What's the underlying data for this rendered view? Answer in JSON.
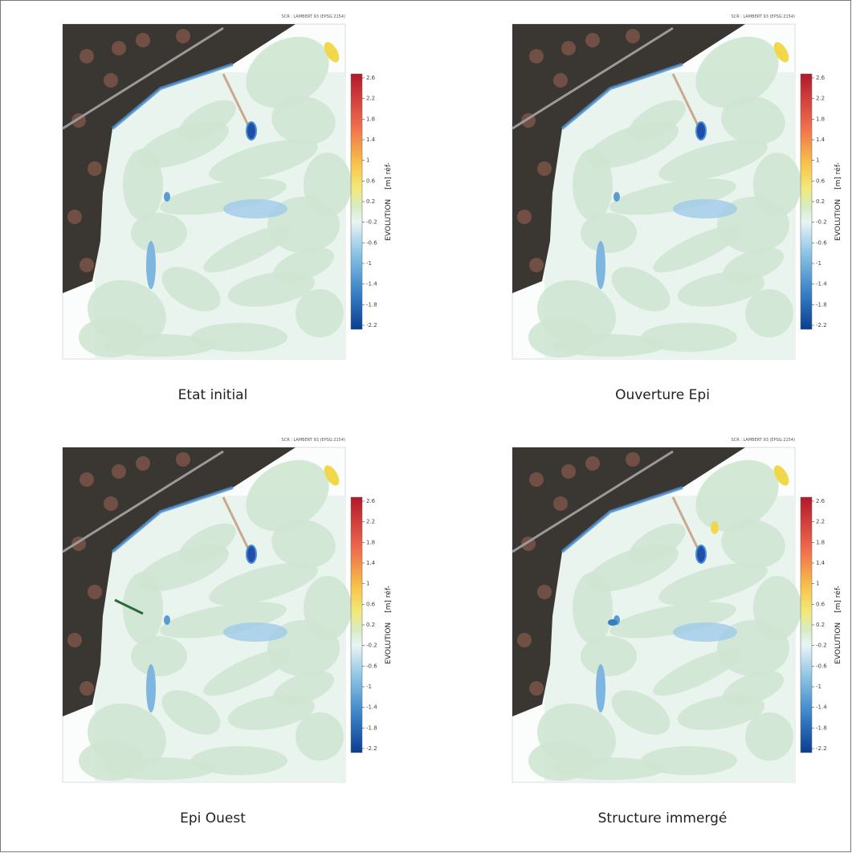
{
  "panels": [
    {
      "title": "Etat initial",
      "crs": "SCR : LAMBERT 93 (EPSG:2154)"
    },
    {
      "title": "Ouverture Epi",
      "crs": "SCR : LAMBERT 93 (EPSG:2154)"
    },
    {
      "title": "Epi Ouest",
      "crs": "SCR : LAMBERT 93 (EPSG:2154)"
    },
    {
      "title": "Structure immergé",
      "crs": "SCR : LAMBERT 93 (EPSG:2154)"
    }
  ],
  "colorbar": {
    "label": "EVOLUTION",
    "unit": "[m] réf-",
    "range": [
      -2.2,
      2.6
    ],
    "ticks": [
      2.6,
      2.2,
      1.8,
      1.4,
      1.0,
      0.6,
      0.2,
      -0.2,
      -0.6,
      -1.0,
      -1.4,
      -1.8,
      -2.2
    ]
  }
}
